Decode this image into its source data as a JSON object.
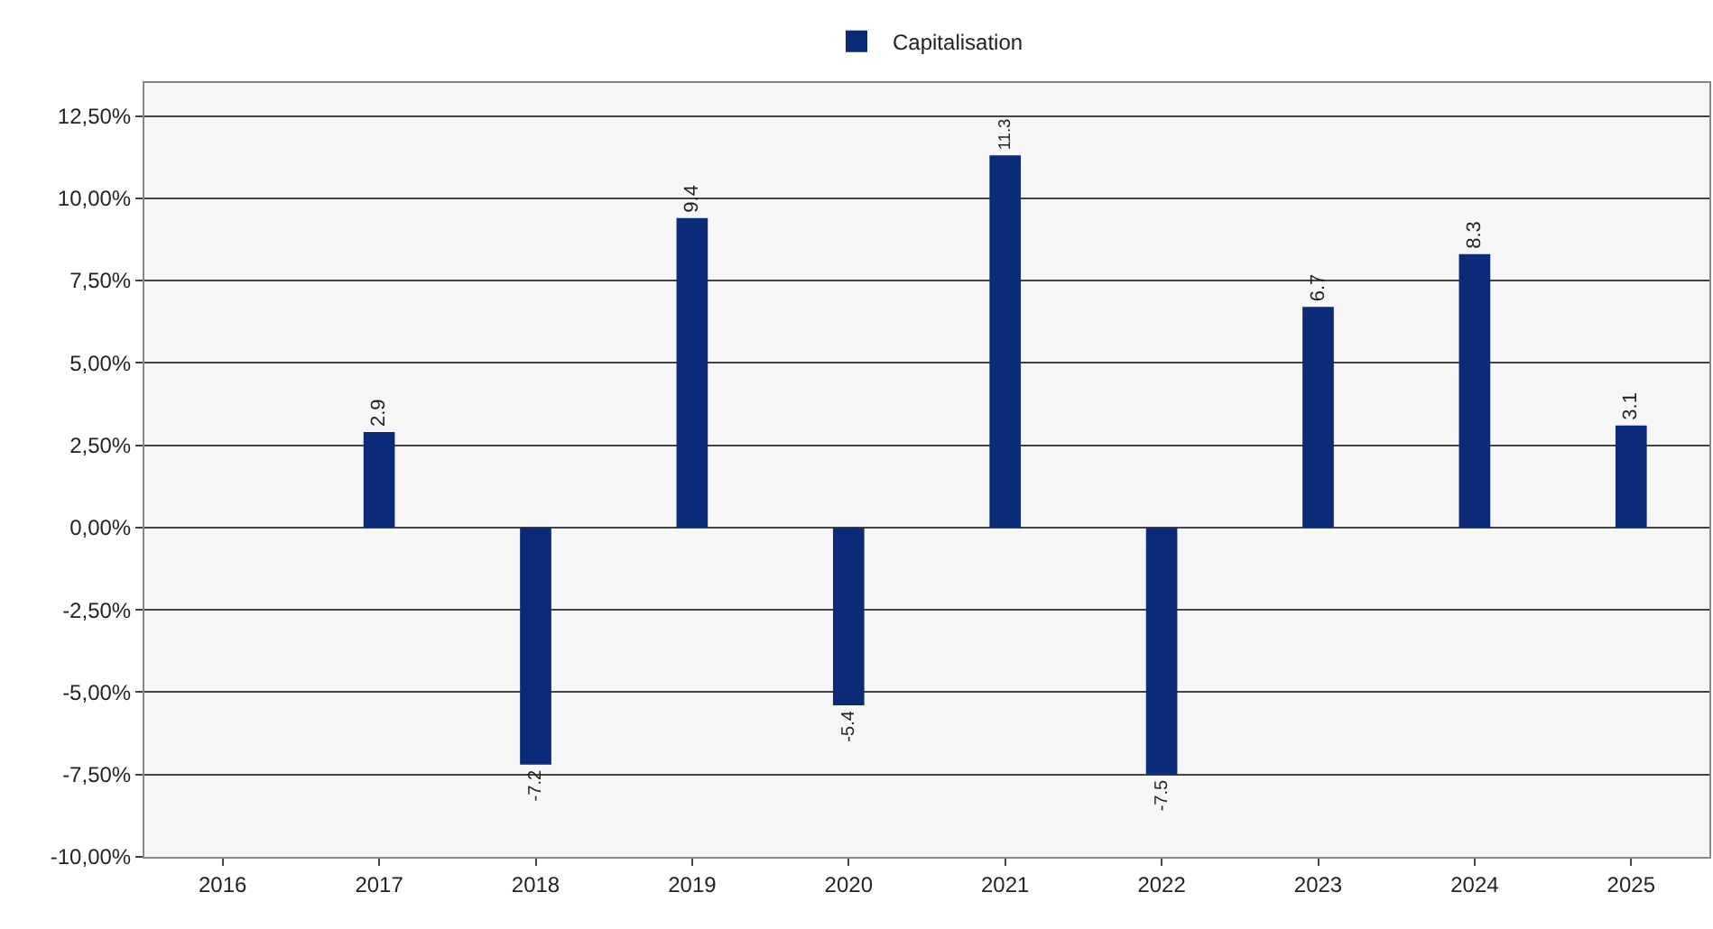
{
  "chart_data": {
    "type": "bar",
    "categories": [
      "2016",
      "2017",
      "2018",
      "2019",
      "2020",
      "2021",
      "2022",
      "2023",
      "2024",
      "2025"
    ],
    "series": [
      {
        "name": "Capitalisation",
        "color": "#0b2a78",
        "values": [
          0,
          2.9,
          -7.2,
          9.4,
          -5.4,
          11.3,
          -7.5,
          6.7,
          8.3,
          3.1
        ],
        "value_labels": [
          null,
          "2.9",
          "-7.2",
          "9.4",
          "-5.4",
          "11.3",
          "-7.5",
          "6.7",
          "8.3",
          "3.1"
        ]
      }
    ],
    "ylim": [
      -10,
      13.5
    ],
    "yticks": [
      {
        "value": -10,
        "label": "-10,00%"
      },
      {
        "value": -7.5,
        "label": "-7,50%"
      },
      {
        "value": -5,
        "label": "-5,00%"
      },
      {
        "value": -2.5,
        "label": "-2,50%"
      },
      {
        "value": 0,
        "label": "0,00%"
      },
      {
        "value": 2.5,
        "label": "2,50%"
      },
      {
        "value": 5,
        "label": "5,00%"
      },
      {
        "value": 7.5,
        "label": "7,50%"
      },
      {
        "value": 10,
        "label": "10,00%"
      },
      {
        "value": 12.5,
        "label": "12,50%"
      }
    ],
    "grid": "y",
    "legend": "top"
  }
}
